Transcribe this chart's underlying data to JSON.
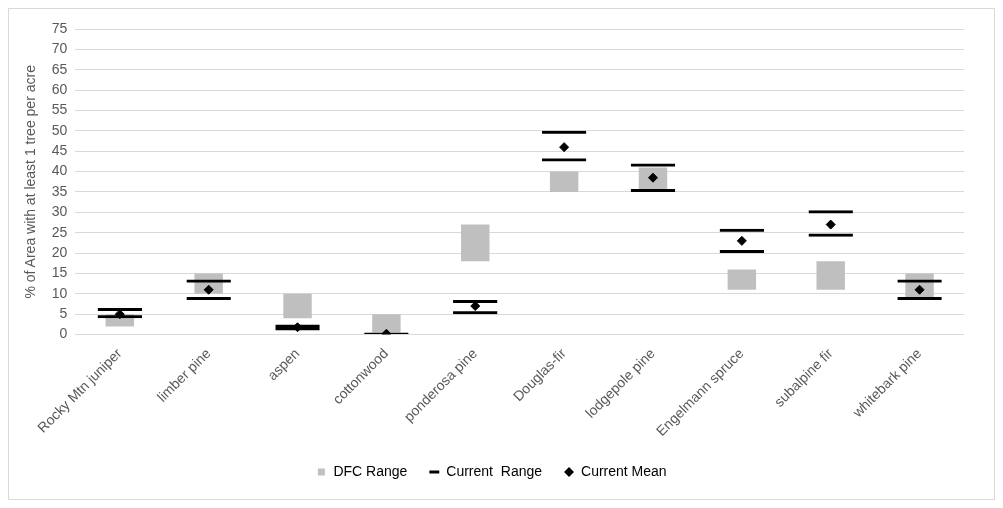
{
  "chart_data": {
    "type": "bar",
    "ylabel": "% of Area with at least 1 tree per acre",
    "categories": [
      "Rocky Mtn juniper",
      "limber pine",
      "aspen",
      "cottonwood",
      "ponderosa pine",
      "Douglas-fir",
      "lodgepole pine",
      "Engelmann spruce",
      "subalpine fir",
      "whitebark pine"
    ],
    "series": [
      {
        "name": "DFC Range",
        "color": "#bfbfbf",
        "base": [
          2,
          10,
          4,
          0.5,
          18,
          35,
          35,
          11,
          11,
          9
        ],
        "values": [
          3,
          5,
          6,
          4.5,
          9,
          5,
          6,
          5,
          7,
          6
        ]
      },
      {
        "name": "Current  Range",
        "color": "#000000",
        "base": [
          4,
          8.5,
          1,
          0,
          5,
          42.5,
          35,
          20,
          24,
          8.5
        ],
        "values": [
          2.5,
          5,
          1.5,
          0.5,
          3.5,
          7.5,
          7,
          6,
          6.5,
          5
        ]
      },
      {
        "name": "Current Mean",
        "type": "scatter",
        "marker": "diamond",
        "color": "#000000",
        "values": [
          5,
          11,
          1.8,
          0.2,
          7,
          46,
          38.5,
          23,
          27,
          11
        ]
      }
    ],
    "ylim": [
      0,
      75
    ],
    "yticks": [
      0,
      5,
      10,
      15,
      20,
      25,
      30,
      35,
      40,
      45,
      50,
      55,
      60,
      65,
      70,
      75
    ],
    "grid": "y",
    "legend": "bottom"
  }
}
